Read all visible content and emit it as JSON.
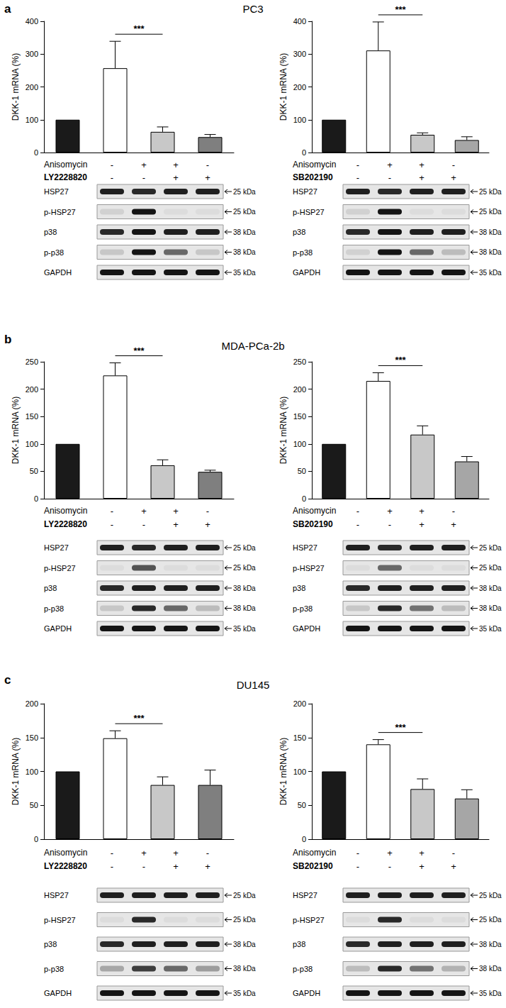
{
  "panels": [
    {
      "letter": "a",
      "title": "PC3"
    },
    {
      "letter": "b",
      "title": "MDA-PCa-2b"
    },
    {
      "letter": "c",
      "title": "DU145"
    }
  ],
  "chart_data": [
    {
      "type": "bar",
      "panel": "a",
      "y_label": "DKK-1 mRNA (%)",
      "categories": [
        null,
        null,
        null,
        null
      ],
      "values": [
        100,
        257,
        63,
        47
      ],
      "errors": [
        0,
        82,
        15,
        8
      ],
      "colors": [
        "#1a1a1a",
        "#ffffff",
        "#c8c8c8",
        "#7f7f7f"
      ],
      "ylim": [
        0,
        400
      ],
      "yticks": [
        0,
        100,
        200,
        300,
        400
      ],
      "grid": false,
      "tick_labels": "y",
      "significance": [
        {
          "from": 1,
          "to": 2,
          "label": "***"
        }
      ],
      "treatments": [
        {
          "label": "Anisomycin",
          "values": [
            "-",
            "+",
            "+",
            "-"
          ]
        },
        {
          "label": "LY2228820",
          "values": [
            "-",
            "-",
            "+",
            "+"
          ]
        }
      ],
      "blot": [
        {
          "label": "HSP27",
          "kda": "25 kDa",
          "band_intensity": [
            0.95,
            0.9,
            0.95,
            0.95
          ]
        },
        {
          "label": "p-HSP27",
          "kda": "25 kDa",
          "band_intensity": [
            0.1,
            1.0,
            0.05,
            0.05
          ]
        },
        {
          "label": "p38",
          "kda": "38 kDa",
          "band_intensity": [
            0.9,
            1.0,
            0.95,
            0.95
          ]
        },
        {
          "label": "p-p38",
          "kda": "38 kDa",
          "band_intensity": [
            0.15,
            1.0,
            0.6,
            0.15
          ]
        },
        {
          "label": "GAPDH",
          "kda": "35 kDa",
          "band_intensity": [
            1.0,
            1.0,
            1.0,
            1.0
          ]
        }
      ]
    },
    {
      "type": "bar",
      "panel": "a",
      "y_label": "DKK-1 mRNA (%)",
      "categories": [
        null,
        null,
        null,
        null
      ],
      "values": [
        100,
        311,
        54,
        38
      ],
      "errors": [
        0,
        87,
        6,
        10
      ],
      "colors": [
        "#1a1a1a",
        "#ffffff",
        "#c8c8c8",
        "#a6a6a6"
      ],
      "ylim": [
        0,
        400
      ],
      "yticks": [
        0,
        100,
        200,
        300,
        400
      ],
      "grid": false,
      "tick_labels": "y",
      "significance": [
        {
          "from": 1,
          "to": 2,
          "label": "***"
        }
      ],
      "treatments": [
        {
          "label": "Anisomycin",
          "values": [
            "-",
            "+",
            "+",
            "-"
          ]
        },
        {
          "label": "SB202190",
          "values": [
            "-",
            "-",
            "+",
            "+"
          ]
        }
      ],
      "blot": [
        {
          "label": "HSP27",
          "kda": "25 kDa",
          "band_intensity": [
            0.95,
            0.9,
            0.95,
            0.95
          ]
        },
        {
          "label": "p-HSP27",
          "kda": "25 kDa",
          "band_intensity": [
            0.1,
            1.0,
            0.05,
            0.05
          ]
        },
        {
          "label": "p38",
          "kda": "38 kDa",
          "band_intensity": [
            0.9,
            1.0,
            0.95,
            0.95
          ]
        },
        {
          "label": "p-p38",
          "kda": "38 kDa",
          "band_intensity": [
            0.1,
            1.0,
            0.6,
            0.2
          ]
        },
        {
          "label": "GAPDH",
          "kda": "35 kDa",
          "band_intensity": [
            1.0,
            1.0,
            1.0,
            1.0
          ]
        }
      ]
    },
    {
      "type": "bar",
      "panel": "b",
      "y_label": "DKK-1 mRNA (%)",
      "categories": [
        null,
        null,
        null,
        null
      ],
      "values": [
        100,
        225,
        61,
        49
      ],
      "errors": [
        0,
        23,
        10,
        3
      ],
      "colors": [
        "#1a1a1a",
        "#ffffff",
        "#c8c8c8",
        "#7f7f7f"
      ],
      "ylim": [
        0,
        250
      ],
      "yticks": [
        0,
        50,
        100,
        150,
        200,
        250
      ],
      "grid": false,
      "tick_labels": "y",
      "significance": [
        {
          "from": 1,
          "to": 2,
          "label": "***"
        }
      ],
      "treatments": [
        {
          "label": "Anisomycin",
          "values": [
            "-",
            "+",
            "+",
            "-"
          ]
        },
        {
          "label": "LY2228820",
          "values": [
            "-",
            "-",
            "+",
            "+"
          ]
        }
      ],
      "blot": [
        {
          "label": "HSP27",
          "kda": "25 kDa",
          "band_intensity": [
            0.95,
            0.9,
            0.95,
            0.95
          ]
        },
        {
          "label": "p-HSP27",
          "kda": "25 kDa",
          "band_intensity": [
            0.05,
            0.7,
            0.05,
            0.05
          ]
        },
        {
          "label": "p38",
          "kda": "38 kDa",
          "band_intensity": [
            0.9,
            0.95,
            0.95,
            0.95
          ]
        },
        {
          "label": "p-p38",
          "kda": "38 kDa",
          "band_intensity": [
            0.15,
            0.9,
            0.6,
            0.2
          ]
        },
        {
          "label": "GAPDH",
          "kda": "35 kDa",
          "band_intensity": [
            1.0,
            1.0,
            1.0,
            1.0
          ]
        }
      ]
    },
    {
      "type": "bar",
      "panel": "b",
      "y_label": "DKK-1 mRNA (%)",
      "categories": [
        null,
        null,
        null,
        null
      ],
      "values": [
        100,
        215,
        117,
        68
      ],
      "errors": [
        0,
        15,
        16,
        9
      ],
      "colors": [
        "#1a1a1a",
        "#ffffff",
        "#c8c8c8",
        "#a6a6a6"
      ],
      "ylim": [
        0,
        250
      ],
      "yticks": [
        0,
        50,
        100,
        150,
        200,
        250
      ],
      "grid": false,
      "tick_labels": "y",
      "significance": [
        {
          "from": 1,
          "to": 2,
          "label": "***"
        }
      ],
      "treatments": [
        {
          "label": "Anisomycin",
          "values": [
            "-",
            "+",
            "+",
            "-"
          ]
        },
        {
          "label": "SB202190",
          "values": [
            "-",
            "-",
            "+",
            "+"
          ]
        }
      ],
      "blot": [
        {
          "label": "HSP27",
          "kda": "25 kDa",
          "band_intensity": [
            0.95,
            0.9,
            0.95,
            0.95
          ]
        },
        {
          "label": "p-HSP27",
          "kda": "25 kDa",
          "band_intensity": [
            0.05,
            0.6,
            0.05,
            0.05
          ]
        },
        {
          "label": "p38",
          "kda": "38 kDa",
          "band_intensity": [
            0.9,
            0.95,
            0.95,
            0.95
          ]
        },
        {
          "label": "p-p38",
          "kda": "38 kDa",
          "band_intensity": [
            0.15,
            0.9,
            0.55,
            0.2
          ]
        },
        {
          "label": "GAPDH",
          "kda": "35 kDa",
          "band_intensity": [
            1.0,
            1.0,
            1.0,
            1.0
          ]
        }
      ]
    },
    {
      "type": "bar",
      "panel": "c",
      "y_label": "DKK-1 mRNA (%)",
      "categories": [
        null,
        null,
        null,
        null
      ],
      "values": [
        100,
        149,
        80,
        80
      ],
      "errors": [
        0,
        11,
        12,
        22
      ],
      "colors": [
        "#1a1a1a",
        "#ffffff",
        "#c8c8c8",
        "#7f7f7f"
      ],
      "ylim": [
        0,
        200
      ],
      "yticks": [
        0,
        50,
        100,
        150,
        200
      ],
      "grid": false,
      "tick_labels": "y",
      "significance": [
        {
          "from": 1,
          "to": 2,
          "label": "***"
        }
      ],
      "treatments": [
        {
          "label": "Anisomycin",
          "values": [
            "-",
            "+",
            "+",
            "-"
          ]
        },
        {
          "label": "LY2228820",
          "values": [
            "-",
            "-",
            "+",
            "+"
          ]
        }
      ],
      "blot": [
        {
          "label": "HSP27",
          "kda": "25 kDa",
          "band_intensity": [
            0.95,
            0.95,
            0.95,
            0.95
          ]
        },
        {
          "label": "p-HSP27",
          "kda": "25 kDa",
          "band_intensity": [
            0.05,
            0.9,
            0.05,
            0.05
          ]
        },
        {
          "label": "p38",
          "kda": "38 kDa",
          "band_intensity": [
            0.9,
            0.95,
            0.95,
            0.95
          ]
        },
        {
          "label": "p-p38",
          "kda": "38 kDa",
          "band_intensity": [
            0.3,
            0.8,
            0.6,
            0.35
          ]
        },
        {
          "label": "GAPDH",
          "kda": "35 kDa",
          "band_intensity": [
            1.0,
            1.0,
            1.0,
            1.0
          ]
        }
      ]
    },
    {
      "type": "bar",
      "panel": "c",
      "y_label": "DKK-1 mRNA (%)",
      "categories": [
        null,
        null,
        null,
        null
      ],
      "values": [
        100,
        140,
        74,
        60
      ],
      "errors": [
        0,
        7,
        15,
        13
      ],
      "colors": [
        "#1a1a1a",
        "#ffffff",
        "#c8c8c8",
        "#a6a6a6"
      ],
      "ylim": [
        0,
        200
      ],
      "yticks": [
        0,
        50,
        100,
        150,
        200
      ],
      "grid": false,
      "tick_labels": "y",
      "significance": [
        {
          "from": 1,
          "to": 2,
          "label": "***"
        }
      ],
      "treatments": [
        {
          "label": "Anisomycin",
          "values": [
            "-",
            "+",
            "+",
            "-"
          ]
        },
        {
          "label": "SB202190",
          "values": [
            "-",
            "-",
            "+",
            "+"
          ]
        }
      ],
      "blot": [
        {
          "label": "HSP27",
          "kda": "25 kDa",
          "band_intensity": [
            0.95,
            0.95,
            0.95,
            0.95
          ]
        },
        {
          "label": "p-HSP27",
          "kda": "25 kDa",
          "band_intensity": [
            0.05,
            0.9,
            0.05,
            0.05
          ]
        },
        {
          "label": "p38",
          "kda": "38 kDa",
          "band_intensity": [
            0.9,
            0.95,
            0.95,
            0.95
          ]
        },
        {
          "label": "p-p38",
          "kda": "38 kDa",
          "band_intensity": [
            0.2,
            0.9,
            0.55,
            0.25
          ]
        },
        {
          "label": "GAPDH",
          "kda": "35 kDa",
          "band_intensity": [
            1.0,
            1.0,
            1.0,
            1.0
          ]
        }
      ]
    }
  ]
}
